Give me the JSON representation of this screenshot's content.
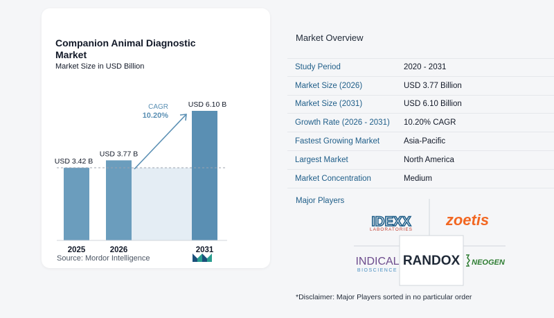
{
  "chart_data": {
    "type": "bar",
    "title": "Companion Animal Diagnostic Market",
    "subtitle": "Market Size in USD Billion",
    "categories": [
      "2025",
      "2026",
      "2031"
    ],
    "values": [
      3.42,
      3.77,
      6.1
    ],
    "value_labels": [
      "USD 3.42 B",
      "USD 3.77 B",
      "USD 6.10 B"
    ],
    "cagr_label": "CAGR",
    "cagr_value": "10.20%",
    "colors": {
      "bar": "#6b9dbd",
      "bar_highlight": "#5a8fb3",
      "shade": "#e4edf4",
      "arrow": "#5a8fb3"
    }
  },
  "source": "Source:  Mordor Intelligence",
  "overview": {
    "title": "Market Overview",
    "rows": [
      {
        "key": "Study Period",
        "value": "2020 - 2031"
      },
      {
        "key": "Market Size (2026)",
        "value": "USD 3.77 Billion"
      },
      {
        "key": "Market Size (2031)",
        "value": "USD 6.10 Billion"
      },
      {
        "key": "Growth Rate (2026 - 2031)",
        "value": "10.20% CAGR"
      },
      {
        "key": "Fastest Growing Market",
        "value": "Asia-Pacific"
      },
      {
        "key": "Largest Market",
        "value": "North America"
      },
      {
        "key": "Market Concentration",
        "value": "Medium"
      }
    ]
  },
  "players": {
    "title": "Major Players",
    "logos": [
      {
        "name": "IDEXX",
        "sub": "LABORATORIES",
        "icon": "idexx-logo"
      },
      {
        "name": "zoetis",
        "icon": "zoetis-logo"
      },
      {
        "name": "INDICAL",
        "sub": "BIOSCIENCE",
        "icon": "indical-logo"
      },
      {
        "name": "RANDOX",
        "icon": "randox-logo"
      },
      {
        "name": "NEOGEN",
        "icon": "neogen-logo"
      }
    ]
  },
  "disclaimer": "*Disclaimer: Major Players sorted in no particular order"
}
